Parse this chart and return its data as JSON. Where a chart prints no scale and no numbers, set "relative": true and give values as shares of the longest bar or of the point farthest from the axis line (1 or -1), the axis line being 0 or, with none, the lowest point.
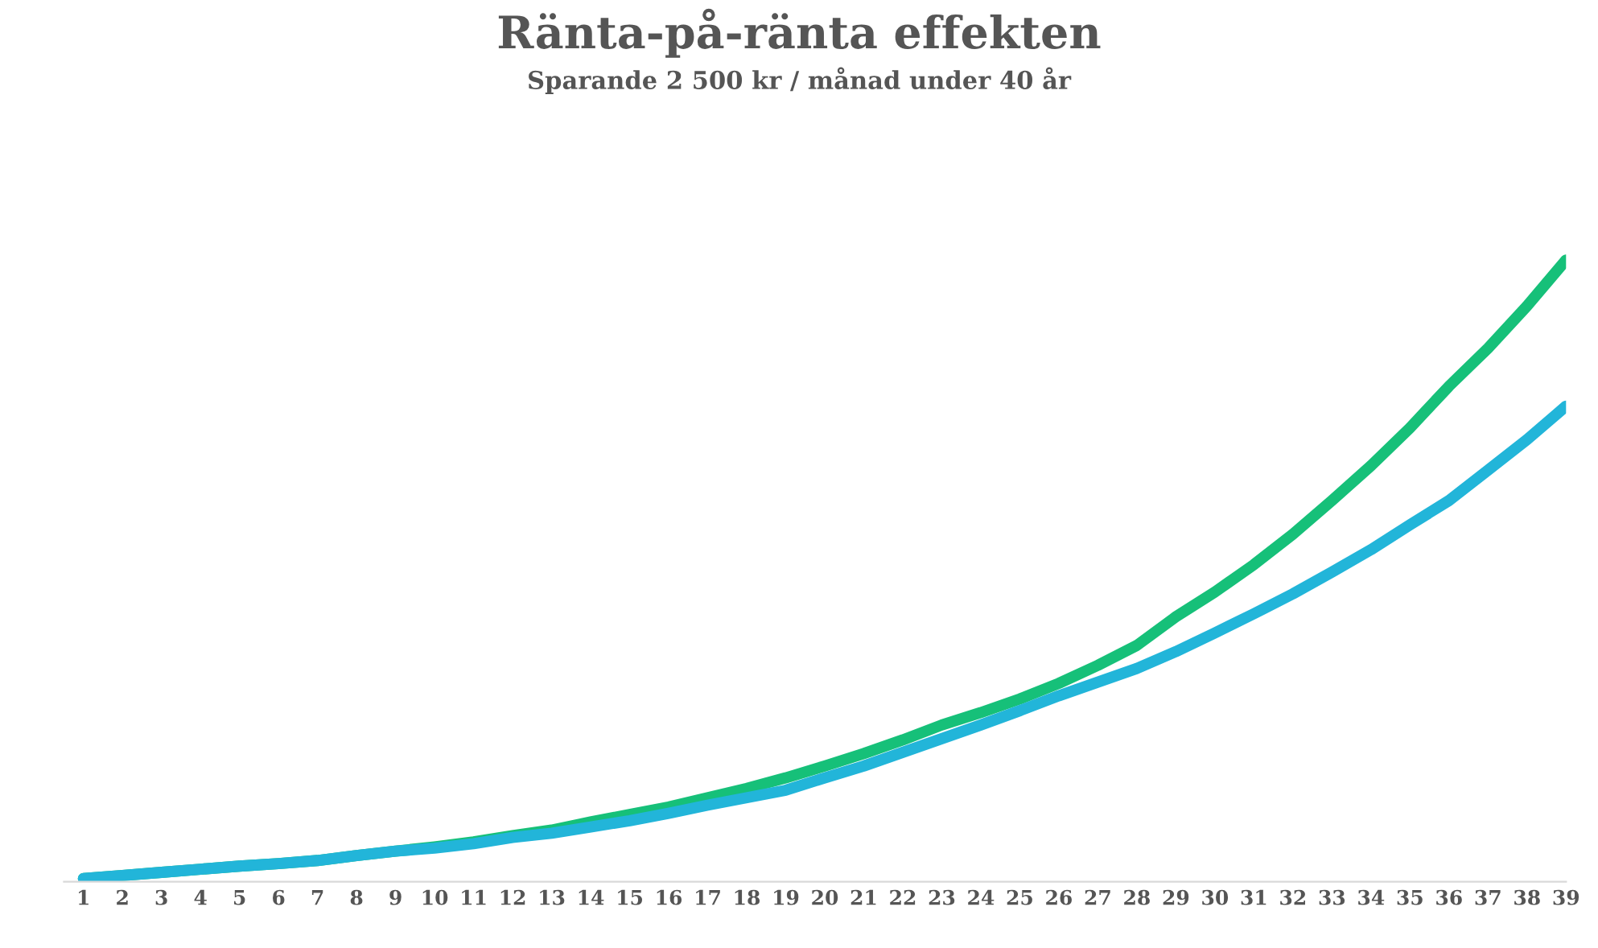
{
  "chart_data": {
    "type": "line",
    "title": "Ränta-på-ränta effekten",
    "subtitle": "Sparande 2 500 kr / månad under 40 år",
    "categories": [
      "1",
      "2",
      "3",
      "4",
      "5",
      "6",
      "7",
      "8",
      "9",
      "10",
      "11",
      "12",
      "13",
      "14",
      "15",
      "16",
      "17",
      "18",
      "19",
      "20",
      "21",
      "22",
      "23",
      "24",
      "25",
      "26",
      "27",
      "28",
      "29",
      "30",
      "31",
      "32",
      "33",
      "34",
      "35",
      "36",
      "37",
      "38",
      "39"
    ],
    "relative": true,
    "series": [
      {
        "color": "#16c079",
        "values": [
          0.005,
          0.01,
          0.015,
          0.02,
          0.025,
          0.029,
          0.034,
          0.042,
          0.049,
          0.056,
          0.064,
          0.074,
          0.083,
          0.096,
          0.108,
          0.12,
          0.135,
          0.15,
          0.167,
          0.186,
          0.206,
          0.228,
          0.252,
          0.272,
          0.294,
          0.319,
          0.348,
          0.38,
          0.426,
          0.466,
          0.51,
          0.559,
          0.613,
          0.669,
          0.73,
          0.797,
          0.858,
          0.926,
          1.0
        ]
      },
      {
        "color": "#22b5d9",
        "values": [
          0.005,
          0.01,
          0.015,
          0.02,
          0.025,
          0.029,
          0.034,
          0.042,
          0.049,
          0.054,
          0.061,
          0.071,
          0.078,
          0.088,
          0.098,
          0.11,
          0.123,
          0.135,
          0.147,
          0.167,
          0.186,
          0.208,
          0.23,
          0.252,
          0.275,
          0.299,
          0.321,
          0.343,
          0.37,
          0.4,
          0.431,
          0.463,
          0.498,
          0.534,
          0.574,
          0.613,
          0.662,
          0.711,
          0.765
        ]
      }
    ],
    "marker": "none",
    "line_style": "solid"
  }
}
